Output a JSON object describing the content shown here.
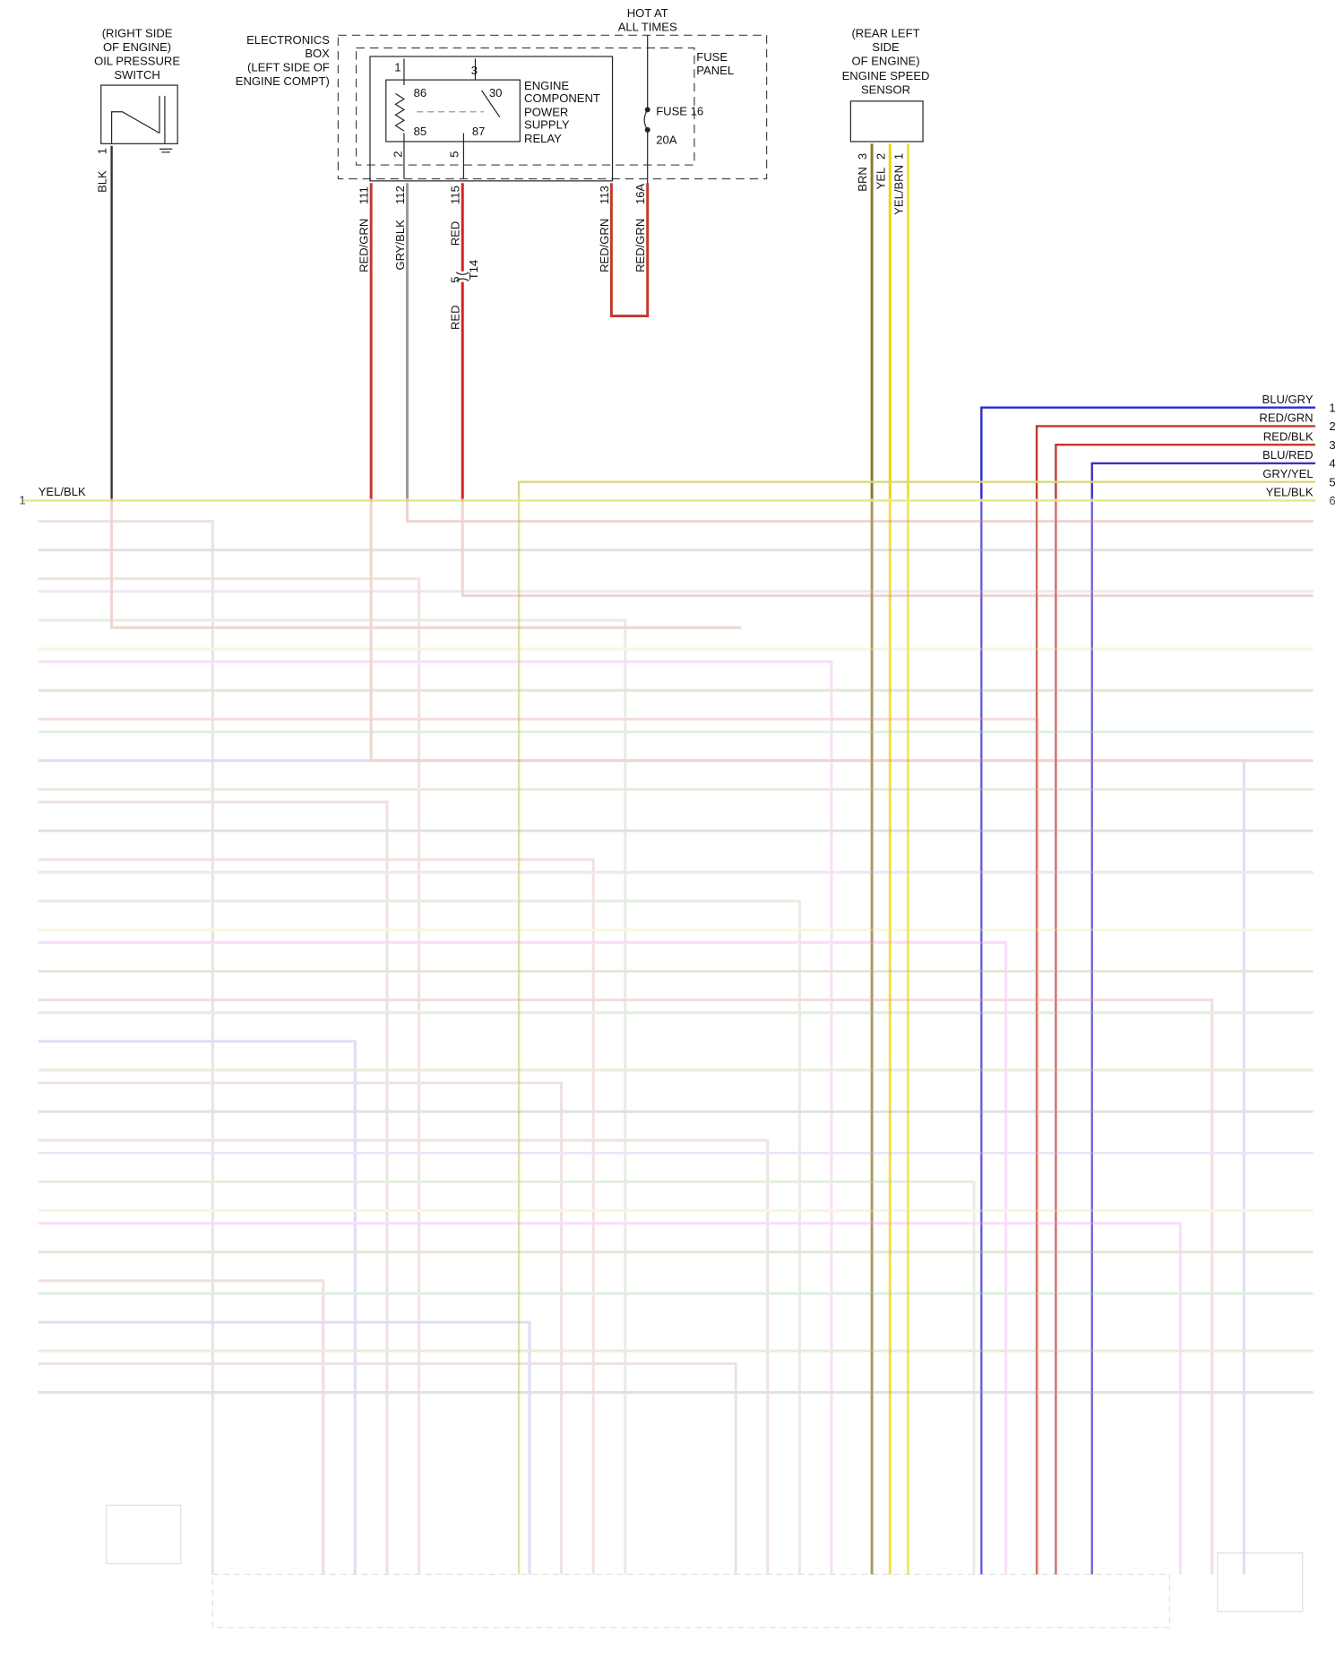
{
  "oil_pressure_switch": {
    "label": [
      "(RIGHT SIDE",
      "OF ENGINE)",
      "OIL PRESSURE",
      "SWITCH"
    ],
    "pin": "1",
    "wire": "BLK"
  },
  "electronics_box": {
    "label": [
      "ELECTRONICS",
      "BOX",
      "(LEFT SIDE OF",
      "ENGINE COMPT)"
    ]
  },
  "power_source": {
    "label": [
      "HOT AT",
      "ALL TIMES"
    ]
  },
  "fuse_panel": {
    "label": [
      "FUSE",
      "PANEL"
    ],
    "fuse": "FUSE 16",
    "rating": "20A"
  },
  "relay": {
    "label": [
      "ENGINE",
      "COMPONENT",
      "POWER",
      "SUPPLY",
      "RELAY"
    ],
    "terminals": [
      "86",
      "30",
      "85",
      "87"
    ],
    "pins": [
      "1",
      "3",
      "2",
      "5"
    ]
  },
  "box_connectors": [
    {
      "pin": "111",
      "wire": "RED/GRN"
    },
    {
      "pin": "112",
      "wire": "GRY/BLK"
    },
    {
      "pin": "115",
      "wire": "RED"
    },
    {
      "pin": "113",
      "wire": "RED/GRN"
    },
    {
      "pin": "16A",
      "wire": "RED/GRN"
    }
  ],
  "inline_connector": {
    "pin": "5",
    "name": "T14",
    "wire": "RED"
  },
  "speed_sensor": {
    "label": [
      "(REAR LEFT",
      "SIDE",
      "OF ENGINE)",
      "ENGINE SPEED",
      "SENSOR"
    ],
    "pins": [
      "3",
      "2",
      "1"
    ],
    "wires": [
      "BRN",
      "YEL",
      "YEL/BRN"
    ]
  },
  "right_wires": [
    {
      "wire": "BLU/GRY",
      "pin": "1"
    },
    {
      "wire": "RED/GRN",
      "pin": "2"
    },
    {
      "wire": "RED/BLK",
      "pin": "3"
    },
    {
      "wire": "BLU/RED",
      "pin": "4"
    },
    {
      "wire": "GRY/YEL",
      "pin": "5"
    },
    {
      "wire": "YEL/BLK",
      "pin": "6"
    }
  ],
  "left_wire": {
    "wire": "YEL/BLK",
    "pin": "1"
  }
}
